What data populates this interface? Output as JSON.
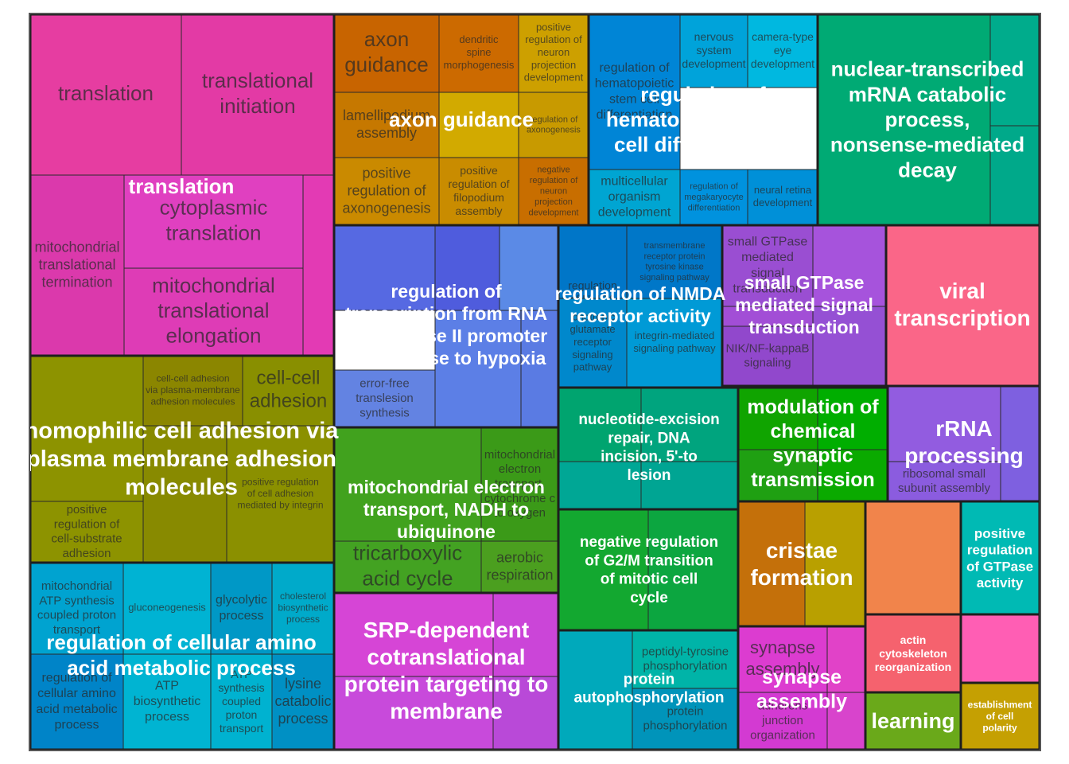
{
  "chart_data": {
    "type": "treemap",
    "title": "",
    "groups": [
      {
        "name": "translation",
        "color": "#E2389F",
        "items": [
          {
            "label": "translation",
            "color": "#E63DA1"
          },
          {
            "label": "translational initiation",
            "color": "#E33AA5"
          },
          {
            "label": "mitochondrial translational termination",
            "color": "#DB39AC"
          },
          {
            "label": "cytoplasmic translation",
            "color": "#E040C0"
          },
          {
            "label": "mitochondrial translational elongation",
            "color": "#DE3CB6"
          },
          {
            "label": "",
            "color": "#E33AB4"
          }
        ]
      },
      {
        "name": "axon guidance",
        "color": "#D08A00",
        "items": [
          {
            "label": "axon guidance",
            "color": "#C86400"
          },
          {
            "label": "dendritic spine morphogenesis",
            "color": "#CC6A00"
          },
          {
            "label": "positive regulation of neuron projection development",
            "color": "#CDA000"
          },
          {
            "label": "lamellipodium assembly",
            "color": "#C67800"
          },
          {
            "label": "",
            "color": "#D2AA00"
          },
          {
            "label": "regulation of axonogenesis",
            "color": "#C89A00"
          },
          {
            "label": "positive regulation of axonogenesis",
            "color": "#CA8A00"
          },
          {
            "label": "positive regulation of filopodium assembly",
            "color": "#C98C00"
          },
          {
            "label": "negative regulation of neuron projection development",
            "color": "#C86E00"
          }
        ]
      },
      {
        "name": "regulation of hematopoietic stem cell differentiation",
        "color": "#0096E0",
        "items": [
          {
            "label": "regulation of hematopoietic stem cell differentiation",
            "color": "#0085D6"
          },
          {
            "label": "nervous system development",
            "color": "#00A3DA"
          },
          {
            "label": "camera-type eye development",
            "color": "#00B8E0"
          },
          {
            "label": "multicellular organism development",
            "color": "#00A5D2"
          },
          {
            "label": "regulation of megakaryocyte differentiation",
            "color": "#0092DE"
          },
          {
            "label": "neural retina development",
            "color": "#0090D8"
          }
        ]
      },
      {
        "name": "nuclear-transcribed mRNA catabolic process, nonsense-mediated decay",
        "color": "#00AE7A",
        "items": [
          {
            "label": "",
            "color": "#00AA74"
          },
          {
            "label": "",
            "color": "#00AC8C"
          },
          {
            "label": "",
            "color": "#00A98A"
          }
        ]
      },
      {
        "name": "regulation of transcription from RNA polymerase II promoter in response to hypoxia",
        "color": "#5C6CE8",
        "items": [
          {
            "label": "",
            "color": "#5669E2"
          },
          {
            "label": "",
            "color": "#4F5CDD"
          },
          {
            "label": "",
            "color": "#5B8AE6"
          },
          {
            "label": "error-free translesion synthesis",
            "color": "#6383E2"
          },
          {
            "label": "",
            "color": "#5C7FE6"
          },
          {
            "label": "",
            "color": "#5A7BE3"
          }
        ]
      },
      {
        "name": "regulation of NMDA receptor activity",
        "color": "#0088D2",
        "items": [
          {
            "label": "regulation of NMDA receptor activity",
            "color": "#0076C8"
          },
          {
            "label": "transmembrane receptor protein tyrosine kinase signaling pathway",
            "color": "#0077C8"
          },
          {
            "label": "ionotropic glutamate receptor signaling pathway",
            "color": "#0088CC"
          },
          {
            "label": "integrin-mediated signaling pathway",
            "color": "#009AD6"
          }
        ]
      },
      {
        "name": "small GTPase mediated signal transduction",
        "color": "#A04FD8",
        "items": [
          {
            "label": "small GTPase mediated signal transduction",
            "color": "#9A4ED2"
          },
          {
            "label": "",
            "color": "#A653DC"
          },
          {
            "label": "",
            "color": "#A24ED6"
          },
          {
            "label": "NIK/NF-kappaB signaling",
            "color": "#9148CC"
          },
          {
            "label": "",
            "color": "#9550D4"
          }
        ]
      },
      {
        "name": "viral transcription",
        "color": "#F8668A",
        "items": [
          {
            "label": "",
            "color": "#FA6688"
          }
        ]
      },
      {
        "name": "homophilic cell adhesion via plasma membrane adhesion molecules",
        "color": "#8D9200",
        "items": [
          {
            "label": "",
            "color": "#8D9300"
          },
          {
            "label": "cell-cell adhesion via plasma-membrane adhesion molecules",
            "color": "#8B8600"
          },
          {
            "label": "cell-cell adhesion",
            "color": "#898F00"
          },
          {
            "label": "positive regulation of cell-substrate adhesion",
            "color": "#8D9300"
          },
          {
            "label": "",
            "color": "#888A00"
          },
          {
            "label": "positive regulation of cell adhesion mediated by integrin",
            "color": "#8B9000"
          }
        ]
      },
      {
        "name": "mitochondrial electron transport, NADH to ubiquinone",
        "color": "#3CA11C",
        "items": [
          {
            "label": "",
            "color": "#41A21E"
          },
          {
            "label": "mitochondrial electron transport, cytochrome c to oxygen",
            "color": "#3B9A18"
          },
          {
            "label": "tricarboxylic acid cycle",
            "color": "#43A222"
          },
          {
            "label": "aerobic respiration",
            "color": "#4B9F1F"
          }
        ]
      },
      {
        "name": "nucleotide-excision repair, DNA incision, 5'-to lesion",
        "color": "#00A57A",
        "items": [
          {
            "label": "",
            "color": "#00A46F"
          },
          {
            "label": "",
            "color": "#00A47E"
          },
          {
            "label": "",
            "color": "#00A795"
          },
          {
            "label": "",
            "color": "#00A593"
          }
        ]
      },
      {
        "name": "modulation of chemical synaptic transmission",
        "color": "#0AA900",
        "items": [
          {
            "label": "",
            "color": "#10A400"
          },
          {
            "label": "",
            "color": "#00AE00"
          },
          {
            "label": "",
            "color": "#1FA012"
          },
          {
            "label": "",
            "color": "#0AAA00"
          }
        ]
      },
      {
        "name": "rRNA processing",
        "color": "#8C5AE0",
        "items": [
          {
            "label": "",
            "color": "#925CE0"
          },
          {
            "label": "",
            "color": "#7E60E0"
          },
          {
            "label": "ribosomal small subunit assembly",
            "color": "#8B5CDF"
          }
        ]
      },
      {
        "name": "regulation of cellular amino acid metabolic process",
        "color": "#0096C8",
        "items": [
          {
            "label": "mitochondrial ATP synthesis coupled proton transport",
            "color": "#00A3D0"
          },
          {
            "label": "gluconeogenesis",
            "color": "#00B3D3"
          },
          {
            "label": "glycolytic process",
            "color": "#0098C6"
          },
          {
            "label": "cholesterol biosynthetic process",
            "color": "#00AACA"
          },
          {
            "label": "regulation of cellular amino acid metabolic process",
            "color": "#0084C8"
          },
          {
            "label": "ATP biosynthetic process",
            "color": "#00B4D2"
          },
          {
            "label": "ATP synthesis coupled proton transport",
            "color": "#00B2D0"
          },
          {
            "label": "lysine catabolic process",
            "color": "#0090C4"
          }
        ]
      },
      {
        "name": "SRP-dependent cotranslational protein targeting to membrane",
        "color": "#D545D8",
        "items": [
          {
            "label": "",
            "color": "#D645D6"
          },
          {
            "label": "",
            "color": "#CB45D8"
          },
          {
            "label": "",
            "color": "#C84ADB"
          },
          {
            "label": "",
            "color": "#B949D8"
          }
        ]
      },
      {
        "name": "negative regulation of G2/M transition of mitotic cell cycle",
        "color": "#14AA32",
        "items": [
          {
            "label": "",
            "color": "#13A830"
          },
          {
            "label": "",
            "color": "#0CA640"
          }
        ]
      },
      {
        "name": "cristae formation",
        "color": "#C08A00",
        "items": [
          {
            "label": "",
            "color": "#C4700A"
          },
          {
            "label": "",
            "color": "#B9A000"
          }
        ]
      },
      {
        "name": "positive regulation of GTPase activity",
        "color": "#00BAB4",
        "items": [
          {
            "label": "",
            "color": "#00BAB4"
          }
        ]
      },
      {
        "name": "",
        "color": "#F0844C",
        "items": [
          {
            "label": "",
            "color": "#F1844B"
          }
        ]
      },
      {
        "name": "protein autophosphorylation",
        "color": "#00A8C0",
        "items": [
          {
            "label": "",
            "color": "#00A9BB"
          },
          {
            "label": "peptidyl-tyrosine phosphorylation",
            "color": "#00B4A8"
          },
          {
            "label": "protein phosphorylation",
            "color": "#0094BA"
          }
        ]
      },
      {
        "name": "synapse assembly",
        "color": "#E040D0",
        "items": [
          {
            "label": "synapse assembly",
            "color": "#DC3CD0"
          },
          {
            "label": "",
            "color": "#E142C8"
          },
          {
            "label": "adherens junction organization",
            "color": "#D33AD2"
          },
          {
            "label": "",
            "color": "#D844CC"
          }
        ]
      },
      {
        "name": "actin cytoskeleton reorganization",
        "color": "#F5626E",
        "items": [
          {
            "label": "",
            "color": "#F5626E"
          }
        ]
      },
      {
        "name": "",
        "color": "#FF5FB4",
        "items": [
          {
            "label": "",
            "color": "#FF5EB4"
          }
        ]
      },
      {
        "name": "learning",
        "color": "#6BAA1C",
        "items": [
          {
            "label": "",
            "color": "#6AA91A"
          }
        ]
      },
      {
        "name": "establishment of cell polarity",
        "color": "#C4A000",
        "items": [
          {
            "label": "",
            "color": "#C5A002"
          }
        ]
      }
    ]
  }
}
